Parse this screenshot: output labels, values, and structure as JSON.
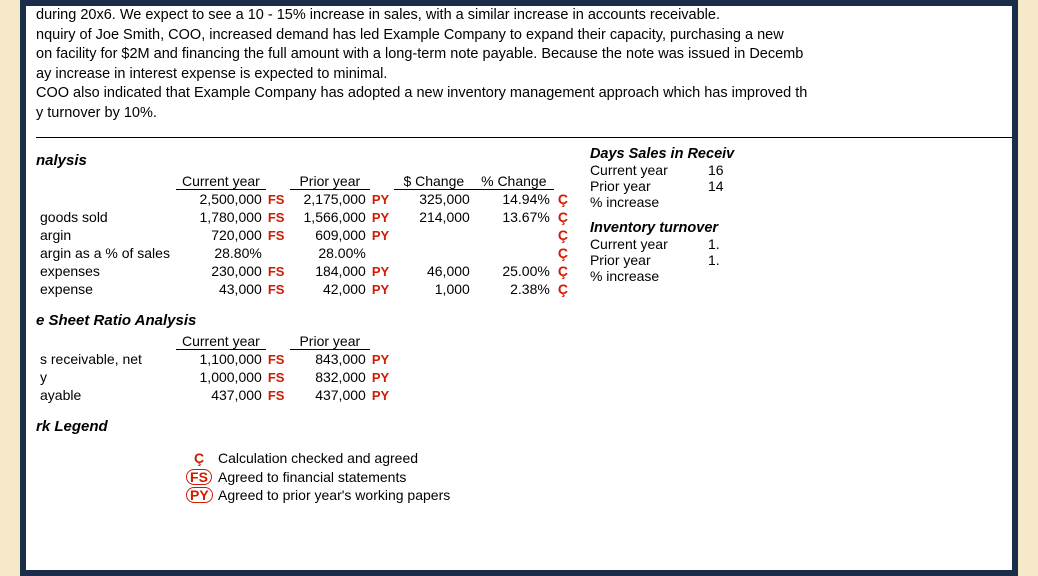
{
  "intro": {
    "p1": "during 20x6. We expect to see a 10 - 15% increase in sales, with a similar increase in accounts receivable.",
    "p2": "nquiry of Joe Smith, COO, increased demand has led Example Company to expand their capacity, purchasing a new",
    "p3": "on facility for $2M and financing the full amount with a long-term note payable. Because the note was issued in Decemb",
    "p4": "ay increase in interest expense is expected to minimal.",
    "p5": "COO also indicated that Example Company has adopted a new inventory management approach which has improved th",
    "p6": "y turnover by 10%."
  },
  "sections": {
    "analysis": "nalysis",
    "balance": "e Sheet Ratio Analysis",
    "legend": "rk Legend",
    "days_sales": "Days Sales in Receiv",
    "inventory": "Inventory turnover"
  },
  "headers": {
    "current": "Current year",
    "prior": "Prior year",
    "dchange": "$ Change",
    "pchange": "% Change"
  },
  "ticks": {
    "fs": "FS",
    "py": "PY",
    "c": "Ç"
  },
  "rows_is": [
    {
      "label": "",
      "cy": "2,500,000",
      "py": "2,175,000",
      "d": "325,000",
      "p": "14.94%"
    },
    {
      "label": "goods sold",
      "cy": "1,780,000",
      "py": "1,566,000",
      "d": "214,000",
      "p": "13.67%"
    },
    {
      "label": "argin",
      "cy": "720,000",
      "py": "609,000",
      "d": "",
      "p": ""
    },
    {
      "label": "argin as a % of sales",
      "cy": "28.80%",
      "py": "28.00%",
      "d": "",
      "p": "",
      "noticks": true
    },
    {
      "label": "expenses",
      "cy": "230,000",
      "py": "184,000",
      "d": "46,000",
      "p": "25.00%"
    },
    {
      "label": "expense",
      "cy": "43,000",
      "py": "42,000",
      "d": "1,000",
      "p": "2.38%"
    }
  ],
  "rows_bs": [
    {
      "label": "s receivable, net",
      "cy": "1,100,000",
      "py": "843,000"
    },
    {
      "label": "y",
      "cy": "1,000,000",
      "py": "832,000"
    },
    {
      "label": "ayable",
      "cy": "437,000",
      "py": "437,000"
    }
  ],
  "side_days": [
    {
      "k": "Current year",
      "v": "16"
    },
    {
      "k": "Prior year",
      "v": "14"
    },
    {
      "k": "% increase",
      "v": ""
    }
  ],
  "side_inv": [
    {
      "k": "Current year",
      "v": "1."
    },
    {
      "k": "Prior year",
      "v": "1."
    },
    {
      "k": "% increase",
      "v": ""
    }
  ],
  "legend_items": [
    {
      "mark": "Ç",
      "text": "Calculation checked and agreed",
      "circled": false
    },
    {
      "mark": "FS",
      "text": "Agreed to financial statements",
      "circled": true
    },
    {
      "mark": "PY",
      "text": "Agreed to prior year's working papers",
      "circled": true
    }
  ],
  "colors": {
    "bg_outer": "#f5e9c9",
    "border": "#1a2e4a",
    "tick_red": "#d11a00",
    "text": "#000000",
    "bg_doc": "#ffffff"
  }
}
